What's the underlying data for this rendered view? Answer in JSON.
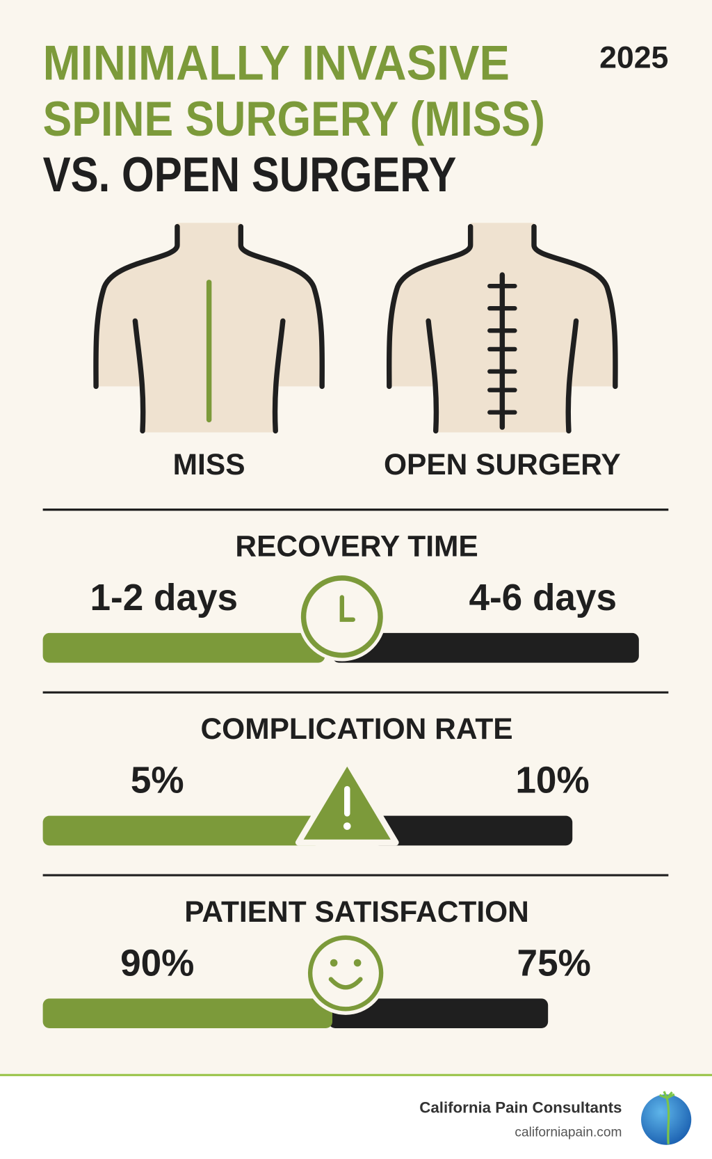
{
  "header": {
    "title": [
      "MINIMALLY INVASIVE",
      "SPINE SURGERY (MISS)",
      "VS. OPEN SURGERY"
    ],
    "year": "2025"
  },
  "figures": [
    "MISS",
    "OPEN SURGERY"
  ],
  "metrics": [
    {
      "title": "RECOVERY TIME",
      "left": "1-2 days",
      "right": "4-6 days"
    },
    {
      "title": "COMPLICATION RATE",
      "left": "5%",
      "right": "10%"
    },
    {
      "title": "PATIENT SATISFACTION",
      "left": "90%",
      "right": "75%"
    }
  ],
  "footer": {
    "company": "California Pain Consultants",
    "url": "californiapain.com"
  }
}
